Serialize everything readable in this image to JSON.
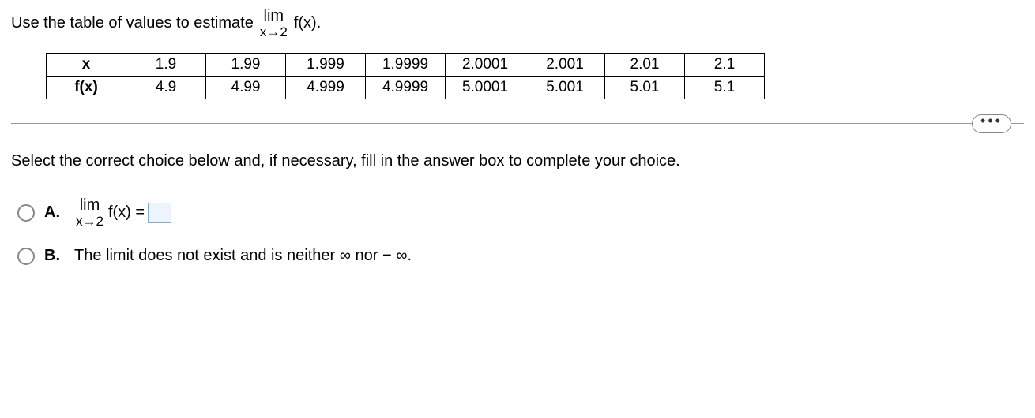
{
  "question": {
    "prefix": "Use the table of values to estimate",
    "lim_top": "lim",
    "lim_bot": "x→2",
    "suffix": "f(x)."
  },
  "table": {
    "row_headers": [
      "x",
      "f(x)"
    ],
    "x_values": [
      "1.9",
      "1.99",
      "1.999",
      "1.9999",
      "2.0001",
      "2.001",
      "2.01",
      "2.1"
    ],
    "fx_values": [
      "4.9",
      "4.99",
      "4.999",
      "4.9999",
      "5.0001",
      "5.001",
      "5.01",
      "5.1"
    ]
  },
  "ellipsis": "•••",
  "instruction": "Select the correct choice below and, if necessary, fill in the answer box to complete your choice.",
  "choice_a": {
    "label": "A.",
    "lim_top": "lim",
    "lim_bot": "x→2",
    "expr": "f(x) ="
  },
  "choice_b": {
    "label": "B.",
    "text": "The limit does not exist and is neither ∞ nor  − ∞."
  }
}
